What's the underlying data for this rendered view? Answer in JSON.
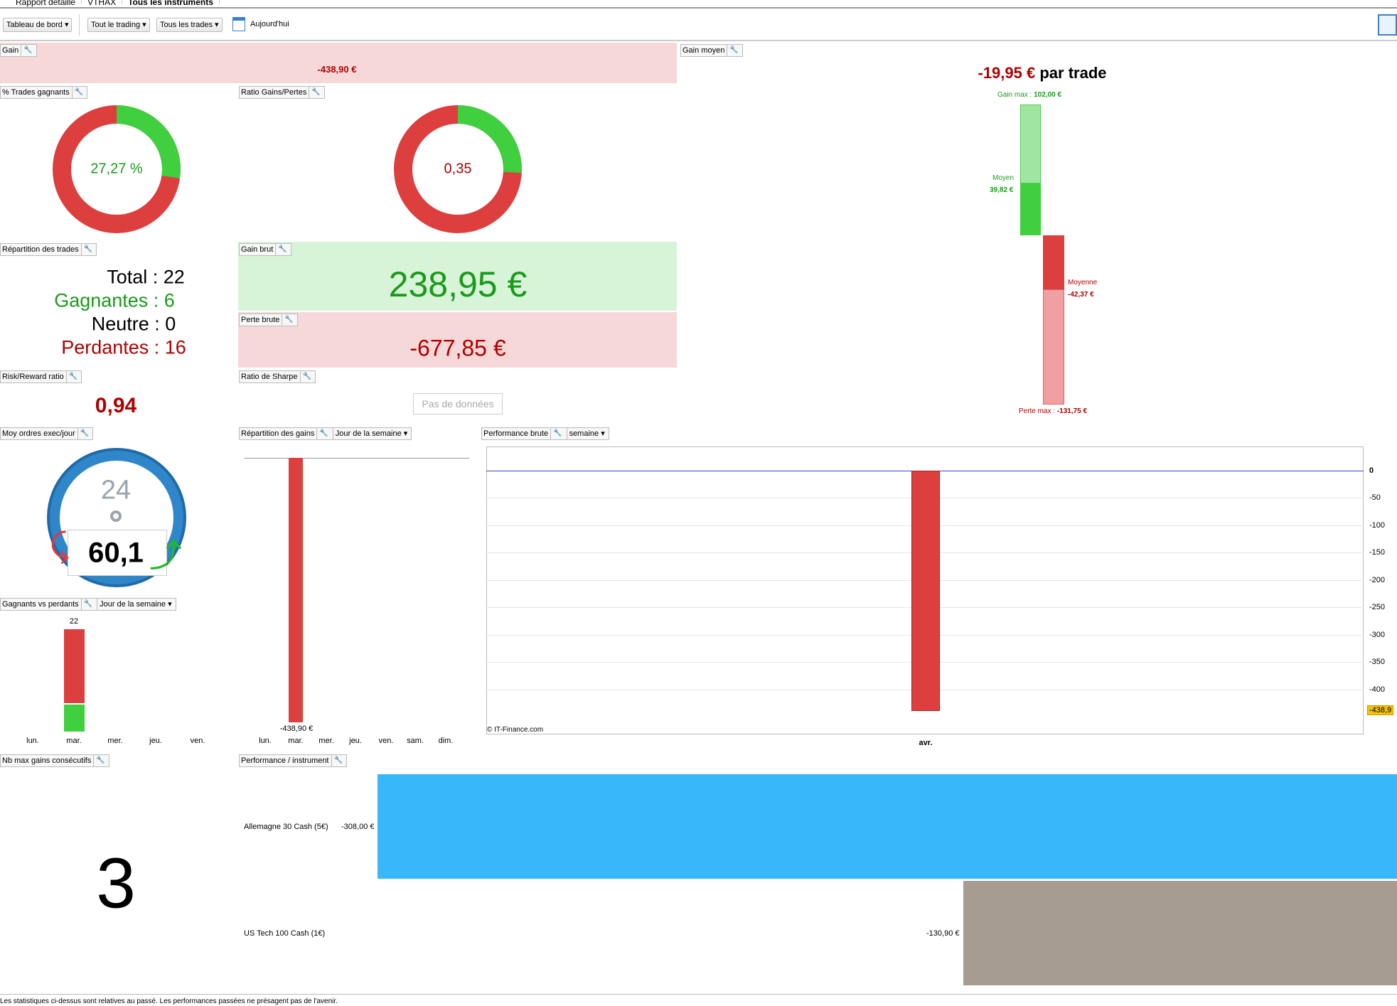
{
  "tabs": [
    "Rapport détaillé",
    "VTHAX",
    "Tous les instruments"
  ],
  "toolbar": {
    "dashboard": "Tableau de bord",
    "trading": "Tout le trading",
    "trades": "Tous les trades",
    "date": "Aujourd'hui"
  },
  "gain": {
    "label": "Gain",
    "value": "-438,90 €"
  },
  "gain_moyen": {
    "label": "Gain moyen",
    "value": "-19,95 €",
    "suffix": "par trade",
    "gain_max": "Gain max : ",
    "gain_max_value": "102,00 €",
    "moyen": "Moyen",
    "moyen_value": "39,82 €",
    "moyenne": "Moyenne",
    "moyenne_value": "-42,37 €",
    "perte_max": "Perte max : ",
    "perte_max_value": "-131,75 €"
  },
  "trades_gagnants": {
    "label": "% Trades gagnants",
    "value": "27,27 %",
    "fraction": 0.2727
  },
  "ratio_gp": {
    "label": "Ratio Gains/Pertes",
    "value": "0,35",
    "fraction": 0.2593
  },
  "repartition": {
    "label": "Répartition des trades",
    "total": "Total : 22",
    "gagnantes": "Gagnantes : 6",
    "neutre": "Neutre : 0",
    "perdantes": "Perdantes : 16"
  },
  "gain_brut": {
    "label": "Gain brut",
    "value": "238,95 €"
  },
  "perte_brute": {
    "label": "Perte brute",
    "value": "-677,85 €"
  },
  "risk_reward": {
    "label": "Risk/Reward ratio",
    "value": "0,94"
  },
  "sharpe": {
    "label": "Ratio de Sharpe",
    "value": "Pas de données"
  },
  "moy_ordres": {
    "label": "Moy ordres exec/jour",
    "value": "60,1",
    "dial": "24"
  },
  "colors": {
    "green": "#3fcf3f",
    "red": "#dd3e3e",
    "blue": "#38b8fa",
    "gray": "#a69c92"
  },
  "chart_data": [
    {
      "type": "bar",
      "title": "Répartition des gains",
      "dropdown": "Jour de la semaine",
      "categories": [
        "lun.",
        "mar.",
        "mer.",
        "jeu.",
        "ven.",
        "sam.",
        "dim."
      ],
      "values": [
        0,
        -438.9,
        0,
        0,
        0,
        0,
        0
      ],
      "value_label": "-438,90 €"
    },
    {
      "type": "bar",
      "title": "Gagnants vs perdants",
      "dropdown": "Jour de la semaine",
      "categories": [
        "lun.",
        "mar.",
        "mer.",
        "jeu.",
        "ven."
      ],
      "series": [
        {
          "name": "gagnants",
          "values": [
            0,
            6,
            0,
            0,
            0
          ]
        },
        {
          "name": "perdants",
          "values": [
            0,
            16,
            0,
            0,
            0
          ]
        }
      ],
      "total_label": "22"
    },
    {
      "type": "bar",
      "title": "Performance brute",
      "dropdown": "semaine",
      "categories": [
        "avr."
      ],
      "values": [
        -438.9
      ],
      "ylim": [
        -450,
        0
      ],
      "yticks": [
        "0",
        "-50",
        "-100",
        "-150",
        "-200",
        "-250",
        "-300",
        "-350",
        "-400"
      ],
      "last_value": "-438,9",
      "credit": "© IT-Finance.com"
    },
    {
      "type": "bar",
      "title": "Performance / instrument",
      "categories": [
        "Allemagne 30 Cash (5€)",
        "US Tech 100 Cash (1€)"
      ],
      "values": [
        -308.0,
        -130.9
      ],
      "value_labels": [
        "-308,00 €",
        "-130,90 €"
      ]
    }
  ],
  "nb_max": {
    "label": "Nb max gains consécutifs",
    "value": "3"
  },
  "footer": "Les statistiques ci-dessus sont relatives au passé. Les performances passées ne présagent pas de l'avenir."
}
